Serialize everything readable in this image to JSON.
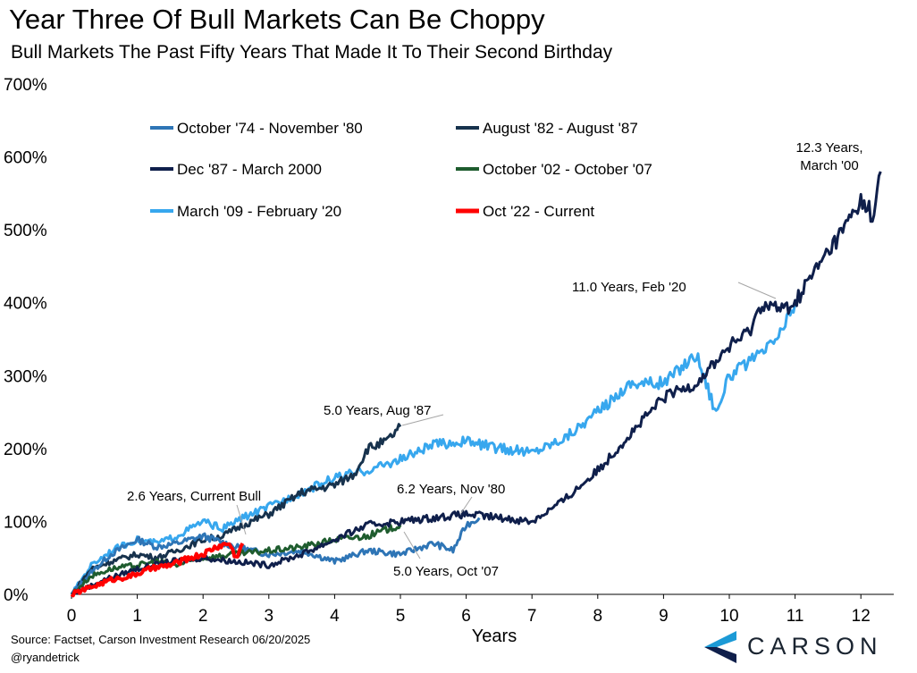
{
  "chart_data": {
    "type": "line",
    "title": "Year Three Of Bull Markets Can Be Choppy",
    "subtitle": "Bull Markets The Past Fifty Years That Made It To Their Second Birthday",
    "xlabel": "Years",
    "ylabel": "",
    "xlim": [
      0,
      12.5
    ],
    "ylim": [
      0,
      700
    ],
    "x_ticks": [
      "0",
      "1",
      "2",
      "3",
      "4",
      "5",
      "6",
      "7",
      "8",
      "9",
      "10",
      "11",
      "12"
    ],
    "y_ticks": [
      "0%",
      "100%",
      "200%",
      "300%",
      "400%",
      "500%",
      "600%",
      "700%"
    ],
    "grid": false,
    "legend_position": "top-left",
    "series": [
      {
        "name": "October '74 - November '80",
        "color": "#2e75b6",
        "points": [
          [
            0,
            0
          ],
          [
            0.3,
            30
          ],
          [
            0.6,
            55
          ],
          [
            1,
            75
          ],
          [
            1.3,
            65
          ],
          [
            1.6,
            70
          ],
          [
            2,
            80
          ],
          [
            2.5,
            65
          ],
          [
            3,
            55
          ],
          [
            3.5,
            60
          ],
          [
            4,
            45
          ],
          [
            4.5,
            60
          ],
          [
            5,
            55
          ],
          [
            5.5,
            70
          ],
          [
            5.8,
            60
          ],
          [
            6,
            95
          ],
          [
            6.2,
            105
          ]
        ]
      },
      {
        "name": "August '82 - August '87",
        "color": "#17324d",
        "points": [
          [
            0,
            0
          ],
          [
            0.3,
            35
          ],
          [
            0.6,
            45
          ],
          [
            1,
            55
          ],
          [
            1.3,
            50
          ],
          [
            1.6,
            60
          ],
          [
            2,
            75
          ],
          [
            2.3,
            80
          ],
          [
            2.6,
            95
          ],
          [
            3,
            110
          ],
          [
            3.5,
            140
          ],
          [
            4,
            150
          ],
          [
            4.3,
            165
          ],
          [
            4.5,
            200
          ],
          [
            4.8,
            210
          ],
          [
            5,
            230
          ]
        ]
      },
      {
        "name": "Dec '87 - March 2000",
        "color": "#0f1f4b",
        "points": [
          [
            0,
            0
          ],
          [
            0.5,
            20
          ],
          [
            1,
            35
          ],
          [
            1.5,
            45
          ],
          [
            2,
            50
          ],
          [
            2.5,
            45
          ],
          [
            3,
            40
          ],
          [
            3.5,
            55
          ],
          [
            4,
            75
          ],
          [
            4.5,
            95
          ],
          [
            5,
            100
          ],
          [
            5.5,
            105
          ],
          [
            6,
            110
          ],
          [
            6.5,
            105
          ],
          [
            7,
            100
          ],
          [
            7.5,
            130
          ],
          [
            8,
            170
          ],
          [
            8.5,
            220
          ],
          [
            9,
            270
          ],
          [
            9.5,
            290
          ],
          [
            10,
            340
          ],
          [
            10.3,
            360
          ],
          [
            10.5,
            400
          ],
          [
            10.8,
            390
          ],
          [
            11,
            400
          ],
          [
            11.2,
            430
          ],
          [
            11.5,
            470
          ],
          [
            11.8,
            510
          ],
          [
            12,
            540
          ],
          [
            12.2,
            520
          ],
          [
            12.3,
            580
          ]
        ]
      },
      {
        "name": "October '02 - October '07",
        "color": "#1e5c2e",
        "points": [
          [
            0,
            0
          ],
          [
            0.3,
            25
          ],
          [
            0.6,
            35
          ],
          [
            1,
            40
          ],
          [
            1.3,
            45
          ],
          [
            1.6,
            40
          ],
          [
            2,
            50
          ],
          [
            2.5,
            55
          ],
          [
            3,
            60
          ],
          [
            3.5,
            65
          ],
          [
            4,
            75
          ],
          [
            4.5,
            80
          ],
          [
            5,
            95
          ]
        ]
      },
      {
        "name": "March '09 - February '20",
        "color": "#37a7ee",
        "points": [
          [
            0,
            0
          ],
          [
            0.3,
            40
          ],
          [
            0.6,
            60
          ],
          [
            1,
            75
          ],
          [
            1.3,
            70
          ],
          [
            1.6,
            80
          ],
          [
            2,
            100
          ],
          [
            2.3,
            90
          ],
          [
            2.6,
            105
          ],
          [
            3,
            120
          ],
          [
            3.5,
            140
          ],
          [
            4,
            160
          ],
          [
            4.5,
            170
          ],
          [
            5,
            185
          ],
          [
            5.5,
            205
          ],
          [
            6,
            210
          ],
          [
            6.5,
            200
          ],
          [
            7,
            195
          ],
          [
            7.5,
            215
          ],
          [
            8,
            250
          ],
          [
            8.5,
            290
          ],
          [
            9,
            290
          ],
          [
            9.5,
            330
          ],
          [
            9.8,
            250
          ],
          [
            10,
            300
          ],
          [
            10.5,
            330
          ],
          [
            10.8,
            360
          ],
          [
            11,
            400
          ]
        ]
      },
      {
        "name": "Oct '22 - Current",
        "color": "#ff0000",
        "points": [
          [
            0,
            0
          ],
          [
            0.3,
            10
          ],
          [
            0.6,
            20
          ],
          [
            0.9,
            25
          ],
          [
            1.2,
            35
          ],
          [
            1.5,
            40
          ],
          [
            1.8,
            50
          ],
          [
            2,
            55
          ],
          [
            2.2,
            65
          ],
          [
            2.4,
            70
          ],
          [
            2.5,
            50
          ],
          [
            2.6,
            70
          ]
        ]
      }
    ],
    "annotations": [
      {
        "text": "12.3 Years,",
        "text2": "March '00",
        "x": 12.3,
        "y": 580
      },
      {
        "text": "11.0 Years, Feb '20",
        "x": 11.0,
        "y": 400
      },
      {
        "text": "5.0 Years, Aug '87",
        "x": 5.0,
        "y": 230
      },
      {
        "text": "6.2 Years, Nov '80",
        "x": 6.2,
        "y": 105
      },
      {
        "text": "2.6 Years, Current Bull",
        "x": 2.6,
        "y": 70
      },
      {
        "text": "5.0 Years, Oct '07",
        "x": 5.0,
        "y": 95
      }
    ]
  },
  "footer": {
    "source": "Source: Factset, Carson Investment Research 06/20/2025",
    "handle": "@ryandetrick"
  },
  "logo": {
    "name": "CARSON",
    "icon": "carson-chevron-icon",
    "color": "#1c9ad6"
  }
}
